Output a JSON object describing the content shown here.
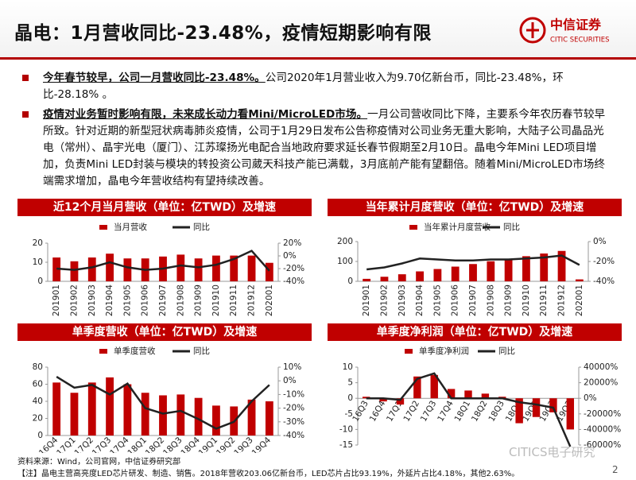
{
  "header": {
    "title": "晶电：1月营收同比-23.48%，疫情短期影响有限",
    "logo_cn": "中信证券",
    "logo_en": "CITIC SECURITIES"
  },
  "bullets": [
    {
      "lead": "今年春节较早，公司一月营收同比-23.48%。",
      "text": "公司2020年1月营业收入为9.70亿新台币，同比-23.48%，环比-28.18% 。"
    },
    {
      "lead": "疫情对业务暂时影响有限，未来成长动力看Mini/MicroLED市场。",
      "text": "一月公司营收同比下降，主要系今年农历春节较早所致。针对近期的新型冠状病毒肺炎疫情，公司于1月29日发布公告称疫情对公司业务无重大影响，大陆子公司晶品光电（常州）、晶宇光电（厦门）、江苏璨扬光电配合当地政府要求延长春节假期至2月10日。晶电今年Mini LED项目增加，负责Mini LED封装与模块的转投资公司葳天科技产能已满载，3月底前产能有望翻倍。随着Mini/MicroLED市场终端需求增加，晶电今年营收结构有望持续改善。"
    }
  ],
  "chart_data": [
    {
      "type": "bar",
      "title": "近12个月当月营收（单位：亿TWD）及增速",
      "categories": [
        "201901",
        "201902",
        "201903",
        "201904",
        "201905",
        "201906",
        "201907",
        "201908",
        "201909",
        "201910",
        "201911",
        "201912",
        "202001"
      ],
      "series": [
        {
          "name": "当月营收",
          "color": "#c00000",
          "type": "bar",
          "values": [
            12.5,
            10.5,
            12.5,
            14.5,
            12,
            12,
            13,
            14,
            12,
            13.5,
            13.5,
            13.5,
            9.7
          ]
        },
        {
          "name": "同比",
          "color": "#222222",
          "type": "line",
          "axis": "y2",
          "values": [
            -20,
            -22,
            -18,
            -10,
            -18,
            -22,
            -20,
            -15,
            -18,
            -14,
            -5,
            8,
            -23.48
          ]
        }
      ],
      "ylim": [
        0,
        20
      ],
      "yticks": [
        0,
        10,
        20
      ],
      "y2lim": [
        -40,
        20
      ],
      "y2ticks": [
        {
          "value": 20,
          "label": "20%"
        },
        {
          "value": 0,
          "label": "0%"
        },
        {
          "value": -20,
          "label": "-20%"
        },
        {
          "value": -40,
          "label": "-40%"
        }
      ]
    },
    {
      "type": "bar",
      "title": "当年累计月度营收（单位：亿TWD）及增速",
      "categories": [
        "201901",
        "201902",
        "201903",
        "201904",
        "201905",
        "201906",
        "201907",
        "201908",
        "201909",
        "201910",
        "201911",
        "201912",
        "202001"
      ],
      "series": [
        {
          "name": "当年累计月度营收",
          "color": "#c00000",
          "type": "bar",
          "values": [
            12.5,
            23,
            35.5,
            50,
            62,
            74,
            87,
            101,
            113,
            126.5,
            140,
            153,
            9.7
          ]
        },
        {
          "name": "同比",
          "color": "#222222",
          "type": "line",
          "axis": "y2",
          "values": [
            -28,
            -26,
            -22,
            -17,
            -18,
            -19,
            -19,
            -18,
            -18,
            -17,
            -16,
            -14,
            -23.48
          ]
        }
      ],
      "ylim": [
        0,
        200
      ],
      "yticks": [
        0,
        100,
        200
      ],
      "y2lim": [
        -40,
        0
      ],
      "y2ticks": [
        {
          "value": 0,
          "label": "0%"
        },
        {
          "value": -20,
          "label": "-20%"
        },
        {
          "value": -40,
          "label": "-40%"
        }
      ]
    },
    {
      "type": "bar",
      "title": "单季度营收（单位：亿TWD）及增速",
      "categories": [
        "16Q4",
        "17Q1",
        "17Q2",
        "17Q3",
        "17Q4",
        "18Q1",
        "18Q2",
        "18Q3",
        "18Q4",
        "19Q1",
        "19Q2",
        "19Q3",
        "19Q4"
      ],
      "series": [
        {
          "name": "单季度营收",
          "color": "#c00000",
          "type": "bar",
          "values": [
            62,
            50,
            62,
            68,
            60,
            50,
            47,
            48,
            44,
            35,
            34,
            42,
            40
          ]
        },
        {
          "name": "同比",
          "color": "#222222",
          "type": "line",
          "axis": "y2",
          "values": [
            3,
            -5,
            -3,
            -10,
            -2,
            -20,
            -24,
            -22,
            -28,
            -35,
            -30,
            -15,
            -3
          ]
        }
      ],
      "ylim": [
        0,
        80
      ],
      "yticks": [
        0,
        20,
        40,
        60,
        80
      ],
      "y2lim": [
        -40,
        10
      ],
      "y2ticks": [
        {
          "value": 10,
          "label": "10%"
        },
        {
          "value": 0,
          "label": "0%"
        },
        {
          "value": -10,
          "label": "-10%"
        },
        {
          "value": -20,
          "label": "-20%"
        },
        {
          "value": -30,
          "label": "-30%"
        },
        {
          "value": -40,
          "label": "-40%"
        }
      ]
    },
    {
      "type": "bar",
      "title": "单季度净利润（单位：亿TWD）及增速",
      "categories": [
        "16Q3",
        "16Q4",
        "17Q1",
        "17Q2",
        "17Q3",
        "17Q4",
        "18Q1",
        "18Q2",
        "18Q3",
        "18Q4",
        "19Q1",
        "19Q2",
        "19Q3"
      ],
      "series": [
        {
          "name": "单季度净利润",
          "color": "#c00000",
          "type": "bar",
          "values": [
            0.5,
            -1,
            -2,
            7,
            7.5,
            3,
            2.5,
            1.5,
            0.5,
            -8,
            -6,
            -4.5,
            -10
          ]
        },
        {
          "name": "同比",
          "color": "#222222",
          "type": "line",
          "axis": "y2",
          "values": [
            0,
            0,
            -2000,
            25000,
            32000,
            0,
            0,
            0,
            0,
            -5000,
            -8000,
            -12000,
            -62000
          ]
        }
      ],
      "ylim": [
        -15,
        10
      ],
      "yticks": [
        -15,
        -10,
        -5,
        0,
        5,
        10
      ],
      "y2lim": [
        -60000,
        40000
      ],
      "y2ticks": [
        {
          "value": 40000,
          "label": "40000%"
        },
        {
          "value": 20000,
          "label": "20000%"
        },
        {
          "value": 0,
          "label": "0%"
        },
        {
          "value": -20000,
          "label": "-20000%"
        },
        {
          "value": -40000,
          "label": "-40000%"
        },
        {
          "value": -60000,
          "label": "-60000%"
        }
      ]
    }
  ],
  "footer": {
    "source": "资料来源：Wind，公司官网，中信证券研究部",
    "note": "【注】晶电主营高亮度LED芯片研发、制造、销售。2018年营收203.06亿新台币，LED芯片占比93.19%，外延片占比4.18%，其他2.63%。",
    "watermark": "CITICS电子研究",
    "page_number": "2"
  }
}
